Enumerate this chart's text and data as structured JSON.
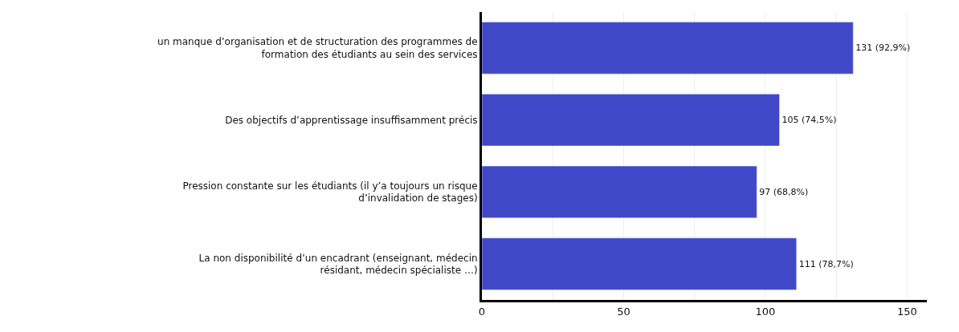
{
  "chart_data": {
    "type": "bar",
    "orientation": "horizontal",
    "categories": [
      "un manque d’organisation et de structuration des programmes de formation des étudiants au sein des services",
      "Des objectifs d’apprentissage insuffisamment précis",
      "Pression constante sur les étudiants (il y’a toujours un risque d’invalidation de stages)",
      "La non disponibilité d’un encadrant (enseignant, médecin résidant, médecin spécialiste …)"
    ],
    "values": [
      131,
      105,
      97,
      111
    ],
    "value_labels": [
      "131 (92,9%)",
      "105 (74,5%)",
      "97 (68,8%)",
      "111 (78,7%)"
    ],
    "color": "#4048c8",
    "xlim": [
      0,
      157
    ],
    "xticks": [
      0,
      {
        "value": 25,
        "label": null
      },
      50,
      {
        "value": 75,
        "label": null
      },
      100,
      {
        "value": 125,
        "label": null
      },
      150
    ],
    "grid": "x"
  }
}
